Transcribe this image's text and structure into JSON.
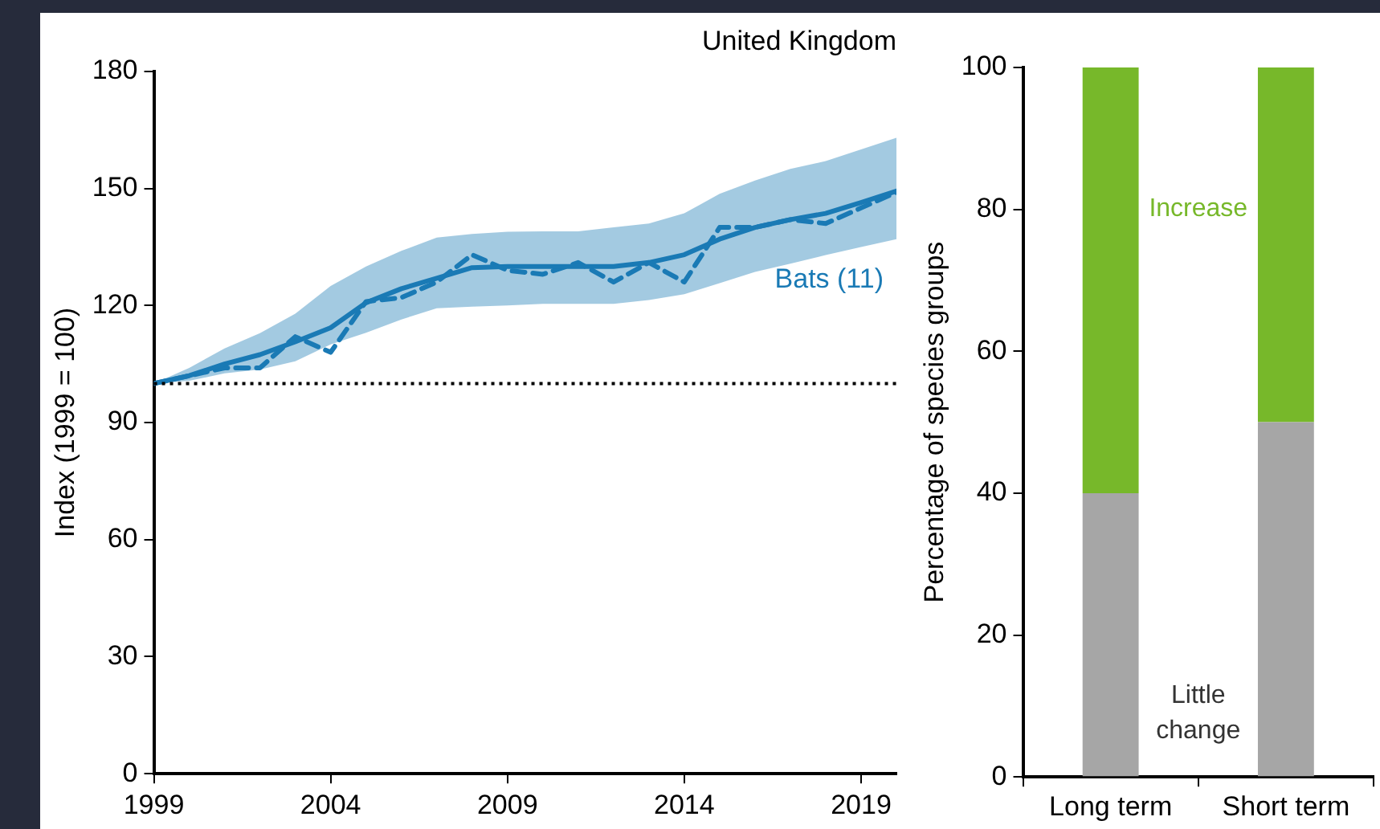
{
  "chart_data": [
    {
      "type": "line",
      "title": "United Kingdom",
      "ylabel": "Index (1999 = 100)",
      "x": [
        1999,
        2000,
        2001,
        2002,
        2003,
        2004,
        2005,
        2006,
        2007,
        2008,
        2009,
        2010,
        2011,
        2012,
        2013,
        2014,
        2015,
        2016,
        2017,
        2018,
        2019,
        2020
      ],
      "series": [
        {
          "name": "Bats (11)",
          "color": "#1a7ab5",
          "line_style": "solid",
          "values": [
            100,
            102,
            105,
            107.4,
            110.7,
            114.3,
            120.7,
            124.3,
            127,
            129.7,
            130,
            130,
            130,
            130,
            131,
            133,
            137,
            140,
            142,
            143.6,
            146.4,
            149.3
          ],
          "lower": [
            100,
            100.7,
            102.6,
            103.6,
            105.7,
            110,
            113,
            116.4,
            119.3,
            119.7,
            120,
            120.4,
            120.4,
            120.4,
            121.4,
            122.9,
            125.7,
            128.6,
            130.7,
            132.9,
            135,
            137
          ],
          "upper": [
            100,
            104,
            109,
            112.9,
            117.9,
            125,
            130,
            134,
            137.4,
            138.3,
            138.9,
            139,
            139,
            140,
            141,
            143.6,
            148.6,
            152,
            155,
            157,
            160,
            163
          ]
        },
        {
          "color": "#1a7ab5",
          "line_style": "dashed",
          "values": [
            100,
            102,
            104,
            104,
            112,
            108,
            121,
            122,
            126,
            133,
            129,
            128,
            131,
            126,
            131,
            126,
            140,
            140,
            142,
            141,
            145,
            149
          ]
        }
      ],
      "xlim": [
        1999,
        2020
      ],
      "xticks": [
        1999,
        2004,
        2009,
        2014,
        2019
      ],
      "ylim": [
        0,
        180
      ],
      "yticks": [
        0,
        30,
        60,
        90,
        120,
        150,
        180
      ],
      "ref_lines": [
        {
          "axis": "y",
          "value": 100,
          "line_style": "dotted",
          "color": "#000000"
        }
      ],
      "marker": "none",
      "grid": false,
      "legend": false
    },
    {
      "type": "bar",
      "stacked": true,
      "ylabel": "Percentage of species groups",
      "categories": [
        "Long term",
        "Short term"
      ],
      "series": [
        {
          "name": "Little change",
          "color": "#a6a6a6",
          "values": [
            40,
            50
          ]
        },
        {
          "name": "Increase",
          "color": "#77b82a",
          "values": [
            60,
            50
          ]
        }
      ],
      "ylim": [
        0,
        100
      ],
      "yticks": [
        0,
        20,
        40,
        60,
        80,
        100
      ],
      "grid": false,
      "legend": false
    }
  ]
}
